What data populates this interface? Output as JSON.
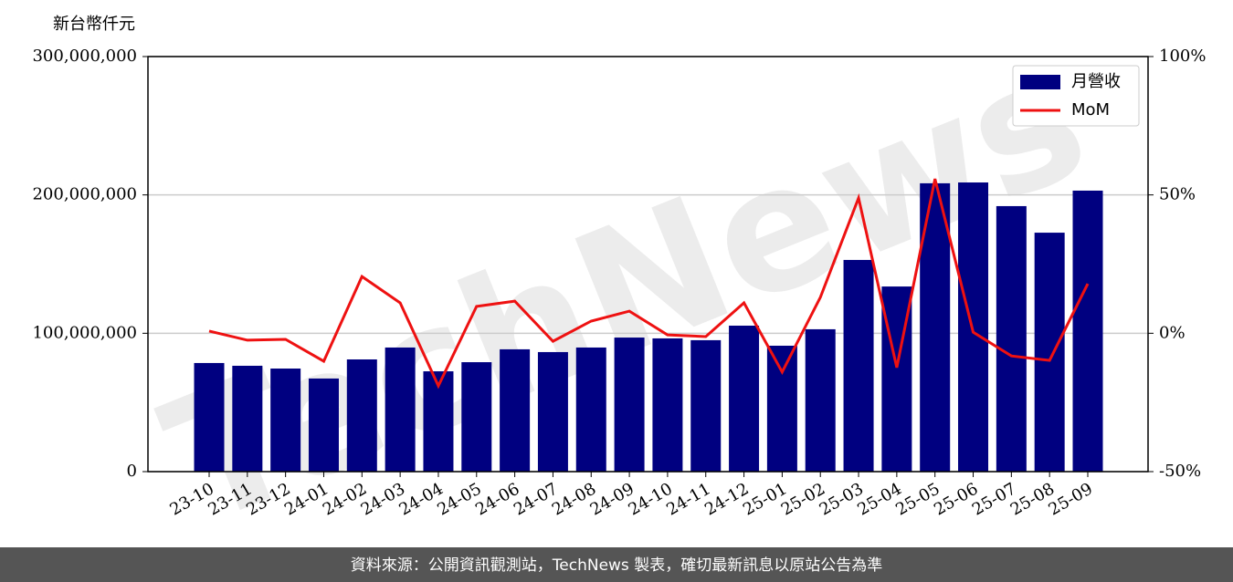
{
  "chart_data": {
    "type": "bar",
    "unit_label": "新台幣仟元",
    "watermark": "TechNews",
    "footer": "資料來源：公開資訊觀測站，TechNews 製表，確切最新訊息以原站公告為準",
    "categories": [
      "23-10",
      "23-11",
      "23-12",
      "24-01",
      "24-02",
      "24-03",
      "24-04",
      "24-05",
      "24-06",
      "24-07",
      "24-08",
      "24-09",
      "24-10",
      "24-11",
      "24-12",
      "25-01",
      "25-02",
      "25-03",
      "25-04",
      "25-05",
      "25-06",
      "25-07",
      "25-08",
      "25-09"
    ],
    "series": [
      {
        "name": "月營收",
        "type": "bar",
        "color": "#000080",
        "values": [
          78500000,
          76500000,
          74500000,
          67300000,
          81100000,
          89700000,
          72500000,
          79100000,
          88400000,
          86400000,
          89700000,
          96900000,
          96300000,
          95000000,
          105500000,
          91000000,
          102900000,
          153000000,
          133800000,
          208400000,
          209000000,
          191900000,
          172700000,
          203100000
        ]
      },
      {
        "name": "MoM",
        "type": "line",
        "axis": "y2",
        "color": "#ee1111",
        "values": [
          0.8,
          -2.5,
          -2.2,
          -10.1,
          20.5,
          11,
          -19,
          9.7,
          11.6,
          -2.9,
          4.4,
          8,
          -0.6,
          -1.2,
          11,
          -14,
          13,
          48.9,
          -12.4,
          55.8,
          0.4,
          -8.2,
          -9.8,
          17.9
        ]
      }
    ],
    "ylim": [
      0,
      300000000
    ],
    "yticks": [
      0,
      {
        "value": 100000000,
        "label": "100,000,000"
      },
      {
        "value": 200000000,
        "label": "200,000,000"
      },
      {
        "value": 300000000,
        "label": "300,000,000"
      }
    ],
    "y2lim": [
      -50,
      100
    ],
    "y2ticks": [
      {
        "value": -50,
        "label": "-50%"
      },
      {
        "value": 0,
        "label": "0%"
      },
      {
        "value": 50,
        "label": "50%"
      },
      {
        "value": 100,
        "label": "100%"
      }
    ],
    "grid": true,
    "legend": "upper right"
  }
}
